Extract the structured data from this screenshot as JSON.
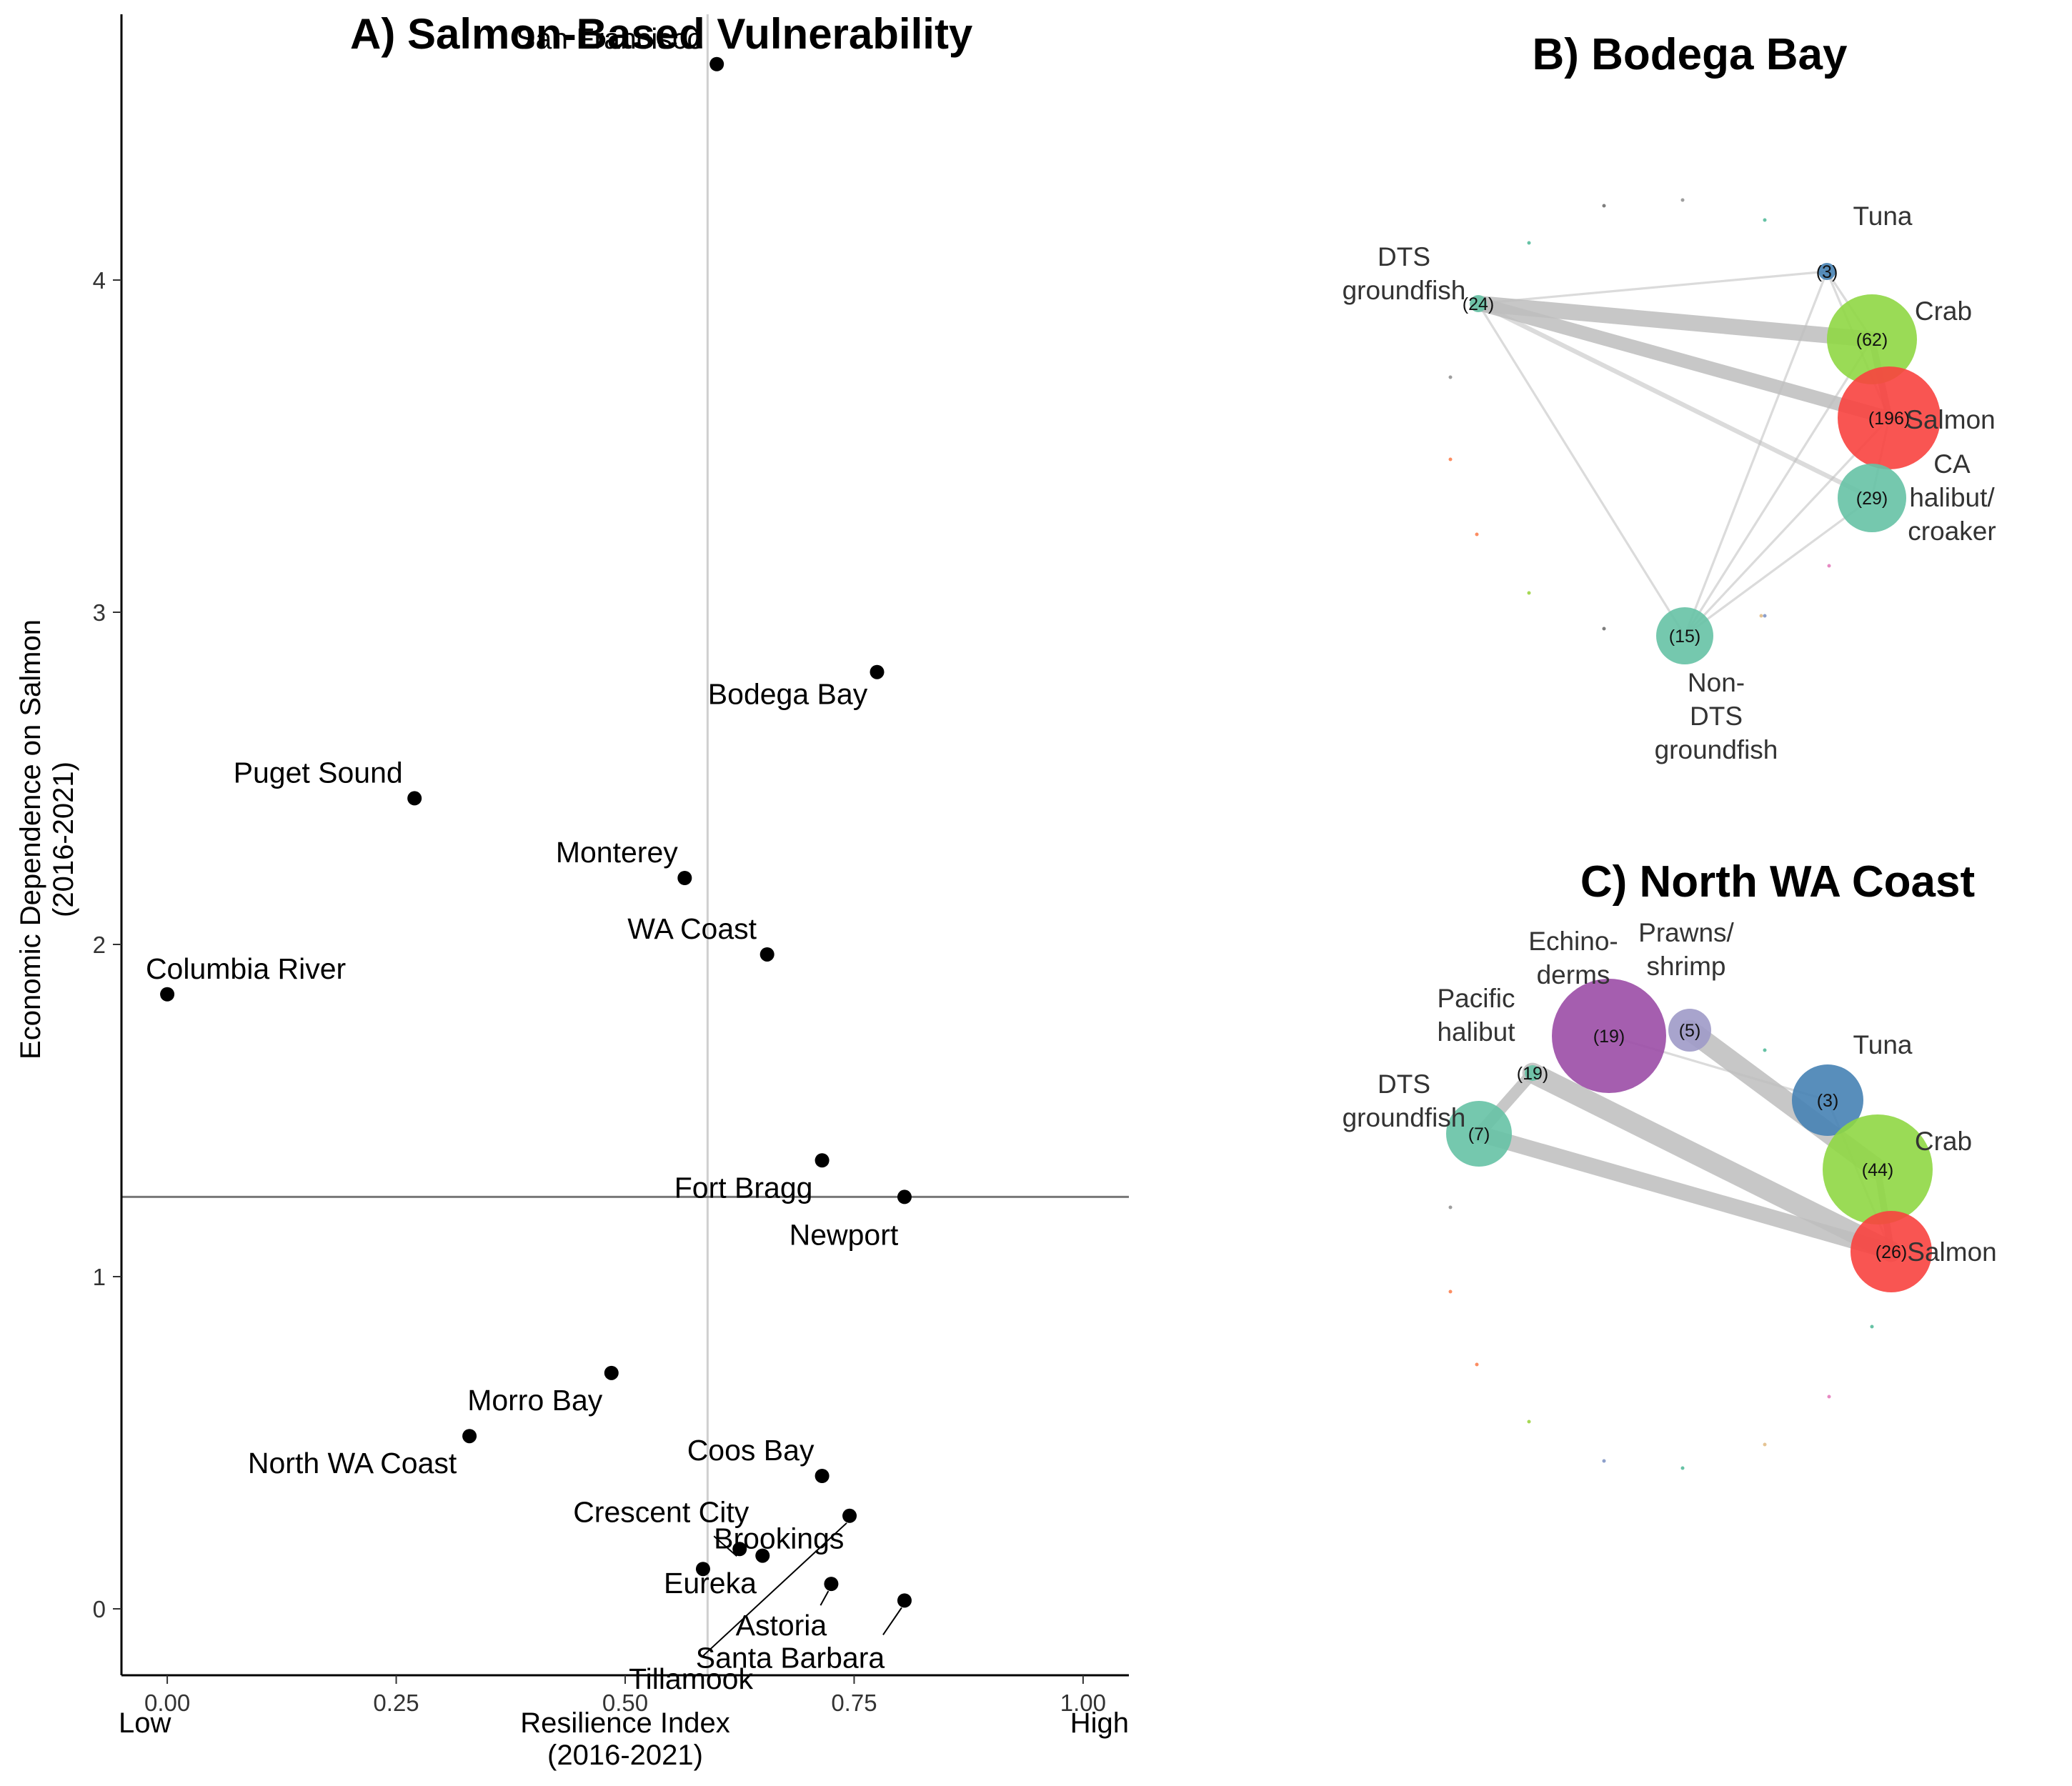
{
  "chart_data": [
    {
      "type": "scatter",
      "title": "A) Salmon-Based Vulnerability",
      "xlabel": "Resilience Index\n(2016-2021)",
      "ylabel": "Economic Dependence on Salmon\n(2016-2021)",
      "x_low_label": "Low",
      "x_high_label": "High",
      "xlim": [
        -0.05,
        1.05
      ],
      "ylim": [
        -0.2,
        4.8
      ],
      "xticks": [
        "0.00",
        "0.25",
        "0.50",
        "0.75",
        "1.00"
      ],
      "xtick_values": [
        0,
        0.25,
        0.5,
        0.75,
        1
      ],
      "yticks": [
        "0",
        "1",
        "2",
        "3",
        "4"
      ],
      "ytick_values": [
        0,
        1,
        2,
        3,
        4
      ],
      "ref_vline_x": 0.59,
      "ref_hline_y": 1.24,
      "points": [
        {
          "label": "San Francisco",
          "x": 0.6,
          "y": 4.65
        },
        {
          "label": "Bodega Bay",
          "x": 0.775,
          "y": 2.82
        },
        {
          "label": "Puget Sound",
          "x": 0.27,
          "y": 2.44
        },
        {
          "label": "Monterey",
          "x": 0.565,
          "y": 2.2
        },
        {
          "label": "WA Coast",
          "x": 0.655,
          "y": 1.97
        },
        {
          "label": "Columbia River",
          "x": 0.0,
          "y": 1.85
        },
        {
          "label": "Fort Bragg",
          "x": 0.715,
          "y": 1.35
        },
        {
          "label": "Newport",
          "x": 0.805,
          "y": 1.24
        },
        {
          "label": "Morro Bay",
          "x": 0.485,
          "y": 0.71
        },
        {
          "label": "North WA Coast",
          "x": 0.33,
          "y": 0.52
        },
        {
          "label": "Coos Bay",
          "x": 0.715,
          "y": 0.4
        },
        {
          "label": "Crescent City",
          "x": 0.625,
          "y": 0.18
        },
        {
          "label": "Brookings",
          "x": 0.65,
          "y": 0.16
        },
        {
          "label": "Eureka",
          "x": 0.585,
          "y": 0.12
        },
        {
          "label": "Tillamook",
          "x": 0.745,
          "y": 0.28
        },
        {
          "label": "Astoria",
          "x": 0.725,
          "y": 0.075
        },
        {
          "label": "Santa Barbara",
          "x": 0.805,
          "y": 0.025
        }
      ]
    },
    {
      "type": "network",
      "title": "B) Bodega Bay",
      "nodes": [
        {
          "id": "dts",
          "label": [
            "DTS",
            "groundfish"
          ],
          "count": "(24)",
          "size": 24,
          "color": "#66C2A5"
        },
        {
          "id": "tuna",
          "label": [
            "Tuna"
          ],
          "count": "(3)",
          "size": 3,
          "color": "#4682B4"
        },
        {
          "id": "crab",
          "label": [
            "Crab"
          ],
          "count": "(62)",
          "size": 62,
          "color": "#8FD744"
        },
        {
          "id": "salmon",
          "label": [
            "Salmon"
          ],
          "count": "(196)",
          "size": 196,
          "color": "#F8433F"
        },
        {
          "id": "halibut",
          "label": [
            "CA",
            "halibut/",
            "croaker"
          ],
          "count": "(29)",
          "size": 29,
          "color": "#66C2A5"
        },
        {
          "id": "nondts",
          "label": [
            "Non-",
            "DTS",
            "groundfish"
          ],
          "count": "(15)",
          "size": 15,
          "color": "#66C2A5"
        }
      ],
      "edges": [
        {
          "source": "dts",
          "target": "crab",
          "weight": 7
        },
        {
          "source": "dts",
          "target": "salmon",
          "weight": 6
        },
        {
          "source": "dts",
          "target": "halibut",
          "weight": 2
        },
        {
          "source": "dts",
          "target": "nondts",
          "weight": 1
        },
        {
          "source": "dts",
          "target": "tuna",
          "weight": 1
        },
        {
          "source": "crab",
          "target": "salmon",
          "weight": 3
        },
        {
          "source": "tuna",
          "target": "crab",
          "weight": 1
        },
        {
          "source": "tuna",
          "target": "salmon",
          "weight": 1
        },
        {
          "source": "halibut",
          "target": "salmon",
          "weight": 1
        },
        {
          "source": "nondts",
          "target": "salmon",
          "weight": 1
        },
        {
          "source": "nondts",
          "target": "crab",
          "weight": 1
        },
        {
          "source": "nondts",
          "target": "halibut",
          "weight": 1
        },
        {
          "source": "nondts",
          "target": "tuna",
          "weight": 1
        }
      ]
    },
    {
      "type": "network",
      "title": "C) North WA Coast",
      "nodes": [
        {
          "id": "echino",
          "label": [
            "Echino-",
            "derms"
          ],
          "count": "(19)",
          "size": 19,
          "color": "#9B4CA6"
        },
        {
          "id": "prawns",
          "label": [
            "Prawns/",
            "shrimp"
          ],
          "count": "(5)",
          "size": 5,
          "color": "#9E9AC8"
        },
        {
          "id": "pachal",
          "label": [
            "Pacific",
            "halibut"
          ],
          "count": "(19)",
          "size": 19,
          "color": "#66C2A5"
        },
        {
          "id": "dts",
          "label": [
            "DTS",
            "groundfish"
          ],
          "count": "(7)",
          "size": 7,
          "color": "#66C2A5"
        },
        {
          "id": "tuna",
          "label": [
            "Tuna"
          ],
          "count": "(3)",
          "size": 3,
          "color": "#4682B4"
        },
        {
          "id": "crab",
          "label": [
            "Crab"
          ],
          "count": "(44)",
          "size": 44,
          "color": "#8FD744"
        },
        {
          "id": "salmon",
          "label": [
            "Salmon"
          ],
          "count": "(26)",
          "size": 26,
          "color": "#F8433F"
        }
      ],
      "edges": [
        {
          "source": "prawns",
          "target": "crab",
          "weight": 9
        },
        {
          "source": "pachal",
          "target": "salmon",
          "weight": 9
        },
        {
          "source": "dts",
          "target": "salmon",
          "weight": 7
        },
        {
          "source": "dts",
          "target": "pachal",
          "weight": 5
        },
        {
          "source": "echino",
          "target": "tuna",
          "weight": 1
        },
        {
          "source": "crab",
          "target": "salmon",
          "weight": 3
        },
        {
          "source": "tuna",
          "target": "salmon",
          "weight": 1
        }
      ]
    }
  ]
}
